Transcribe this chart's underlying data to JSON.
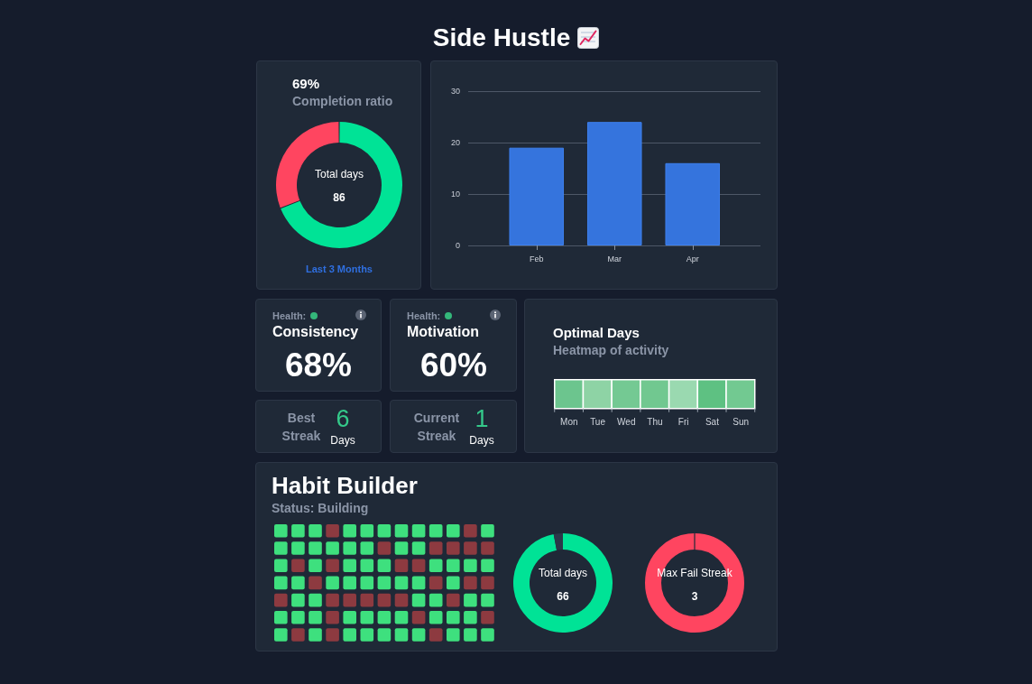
{
  "chart_data": [
    {
      "type": "other",
      "title": "Side Hustle"
    },
    {
      "type": "donut",
      "title": "69%",
      "subtitle": "Completion ratio",
      "categories": [
        null,
        null
      ],
      "values": [
        69,
        31
      ],
      "colors": [
        "#00e396",
        "#ff4560"
      ],
      "annotations": [
        "Total days",
        "86",
        "Last 3 Months"
      ]
    },
    {
      "type": "bar",
      "categories": [
        "Feb",
        "Mar",
        "Apr"
      ],
      "values": [
        19,
        24,
        16
      ],
      "color": "#3574dd",
      "ylim": [
        0,
        30
      ],
      "yticks": [
        0,
        10,
        20,
        30
      ],
      "grid": "y"
    },
    {
      "type": "other",
      "title": "Consistency",
      "annotations": [
        "Health:",
        "68%"
      ]
    },
    {
      "type": "other",
      "title": "Motivation",
      "annotations": [
        "Health:",
        "60%"
      ]
    },
    {
      "type": "other",
      "annotations": [
        "Best Streak",
        "6",
        "Days"
      ]
    },
    {
      "type": "other",
      "annotations": [
        "Current Streak",
        "1",
        "Days"
      ]
    },
    {
      "type": "other",
      "title": "Optimal Days",
      "subtitle": "Heatmap of activity",
      "categories": [
        "Mon",
        "Tue",
        "Wed",
        "Thu",
        "Fri",
        "Sat",
        "Sun"
      ],
      "colors": [
        [
          "#6cc58e",
          "#8ed3a5",
          "#74c993",
          "#71c890",
          "#9ad9b0",
          "#5ec182",
          "#72c991"
        ]
      ]
    },
    {
      "type": "other",
      "title": "Habit Builder",
      "subtitle": "Status: Building",
      "colors": [
        [
          "#3ee07e",
          "#3ee07e",
          "#3ee07e",
          "#8d3a40",
          "#3ee07e",
          "#3ee07e",
          "#3ee07e",
          "#3ee07e",
          "#3ee07e",
          "#3ee07e",
          "#3ee07e",
          "#8d3a40",
          "#3ee07e"
        ],
        [
          "#3ee07e",
          "#3ee07e",
          "#3ee07e",
          "#3ee07e",
          "#3ee07e",
          "#3ee07e",
          "#8d3a40",
          "#3ee07e",
          "#3ee07e",
          "#8d3a40",
          "#8d3a40",
          "#8d3a40",
          "#8d3a40"
        ],
        [
          "#3ee07e",
          "#8d3a40",
          "#3ee07e",
          "#8d3a40",
          "#3ee07e",
          "#3ee07e",
          "#3ee07e",
          "#8d3a40",
          "#8d3a40",
          "#3ee07e",
          "#3ee07e",
          "#3ee07e",
          "#3ee07e"
        ],
        [
          "#3ee07e",
          "#3ee07e",
          "#8d3a40",
          "#3ee07e",
          "#3ee07e",
          "#3ee07e",
          "#3ee07e",
          "#3ee07e",
          "#3ee07e",
          "#8d3a40",
          "#3ee07e",
          "#8d3a40",
          "#8d3a40"
        ],
        [
          "#8d3a40",
          "#3ee07e",
          "#3ee07e",
          "#8d3a40",
          "#8d3a40",
          "#8d3a40",
          "#8d3a40",
          "#8d3a40",
          "#3ee07e",
          "#3ee07e",
          "#8d3a40",
          "#3ee07e",
          "#3ee07e"
        ],
        [
          "#3ee07e",
          "#3ee07e",
          "#3ee07e",
          "#8d3a40",
          "#3ee07e",
          "#3ee07e",
          "#3ee07e",
          "#3ee07e",
          "#8d3a40",
          "#3ee07e",
          "#3ee07e",
          "#3ee07e",
          "#8d3a40"
        ],
        [
          "#3ee07e",
          "#8d3a40",
          "#3ee07e",
          "#8d3a40",
          "#3ee07e",
          "#3ee07e",
          "#3ee07e",
          "#3ee07e",
          "#3ee07e",
          "#8d3a40",
          "#3ee07e",
          "#3ee07e",
          "#3ee07e"
        ]
      ]
    },
    {
      "type": "donut",
      "categories": [
        null,
        null
      ],
      "values": [
        97,
        3
      ],
      "colors": [
        "#00e396",
        "#2b3749"
      ],
      "annotations": [
        "Total days",
        "66"
      ]
    },
    {
      "type": "other",
      "color": "#ff4560",
      "annotations": [
        "Max Fail Streak",
        "3"
      ]
    }
  ]
}
